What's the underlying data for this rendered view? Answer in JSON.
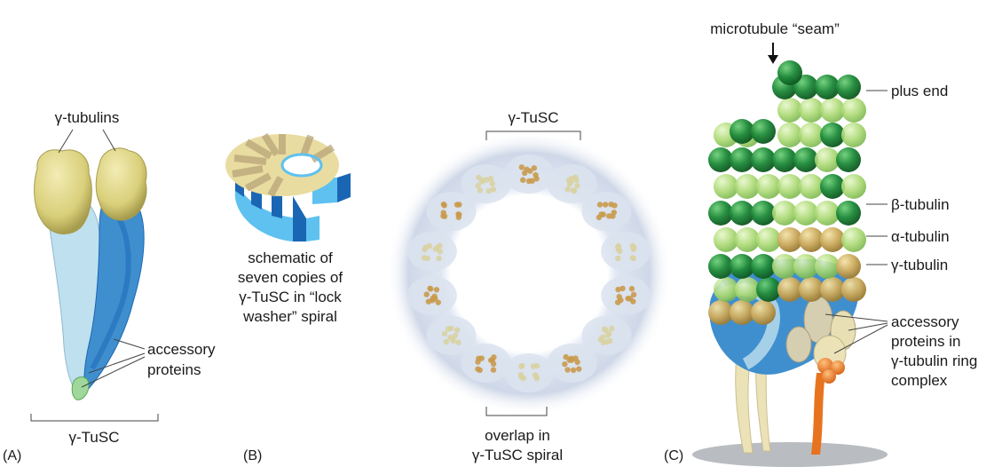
{
  "panel_a": {
    "letter": "(A)",
    "gamma_tubulins": "γ-tubulins",
    "accessory": "accessory",
    "proteins": "proteins",
    "tusc": "γ-TuSC"
  },
  "panel_b": {
    "letter": "(B)",
    "caption_lines": [
      "schematic of",
      "seven copies of",
      "γ-TuSC in “lock",
      "washer” spiral"
    ]
  },
  "panel_ring": {
    "tusc_top": "γ-TuSC",
    "overlap_lines": [
      "overlap in",
      "γ-TuSC spiral"
    ]
  },
  "panel_c": {
    "letter": "(C)",
    "seam": "microtubule “seam”",
    "plus_end": "plus end",
    "beta": "β-tubulin",
    "alpha": "α-tubulin",
    "gamma": "γ-tubulin",
    "accessory_lines": [
      "accessory",
      "proteins in",
      "γ-tubulin ring",
      "complex"
    ]
  },
  "colors": {
    "gamma_yellow": "#d9cf7a",
    "light_blue": "#bfe0ee",
    "mid_blue": "#3f8fcf",
    "dark_blue": "#1a66b5",
    "dark_green": "#1f8a3a",
    "light_green": "#a9d870",
    "gold": "#c9a85a",
    "ring_haze": "#cfd8e8",
    "orange": "#e8731f"
  }
}
